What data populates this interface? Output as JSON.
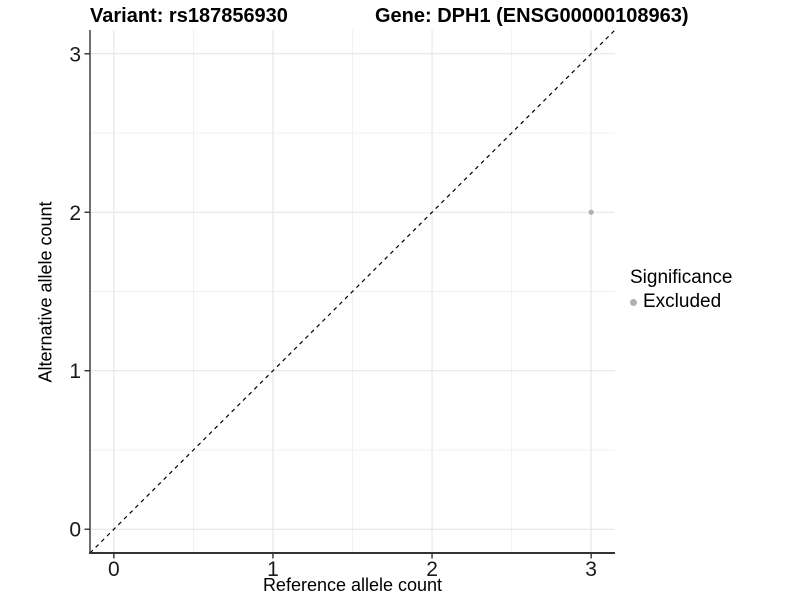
{
  "header": {
    "variant_title": "Variant: rs187856930",
    "gene_title": "Gene: DPH1 (ENSG00000108963)"
  },
  "axes": {
    "x_title": "Reference allele count",
    "y_title": "Alternative allele count"
  },
  "legend": {
    "title": "Significance",
    "items": [
      {
        "label": "Excluded",
        "color": "#b0b0b0"
      }
    ]
  },
  "chart_data": {
    "type": "scatter",
    "title": "Variant: rs187856930    Gene: DPH1 (ENSG00000108963)",
    "xlabel": "Reference allele count",
    "ylabel": "Alternative allele count",
    "xlim": [
      -0.15,
      3.15
    ],
    "ylim": [
      -0.15,
      3.15
    ],
    "x_ticks": [
      0,
      1,
      2,
      3
    ],
    "y_ticks": [
      0,
      1,
      2,
      3
    ],
    "x_minor_ticks": [
      0.5,
      1.5,
      2.5
    ],
    "y_minor_ticks": [
      0.5,
      1.5,
      2.5
    ],
    "grid": "major+minor",
    "legend_position": "right",
    "series": [
      {
        "name": "Excluded",
        "color": "#b0b0b0",
        "points": [
          {
            "x": 3,
            "y": 2
          }
        ]
      }
    ],
    "reference_line": {
      "kind": "abline",
      "slope": 1,
      "intercept": 0,
      "style": "dashed",
      "color": "#000000"
    },
    "colors": {
      "grid_major": "#e3e3e3",
      "grid_minor": "#f1f1f1",
      "axis_line": "#333333",
      "tick_label": "#1a1a1a"
    }
  }
}
